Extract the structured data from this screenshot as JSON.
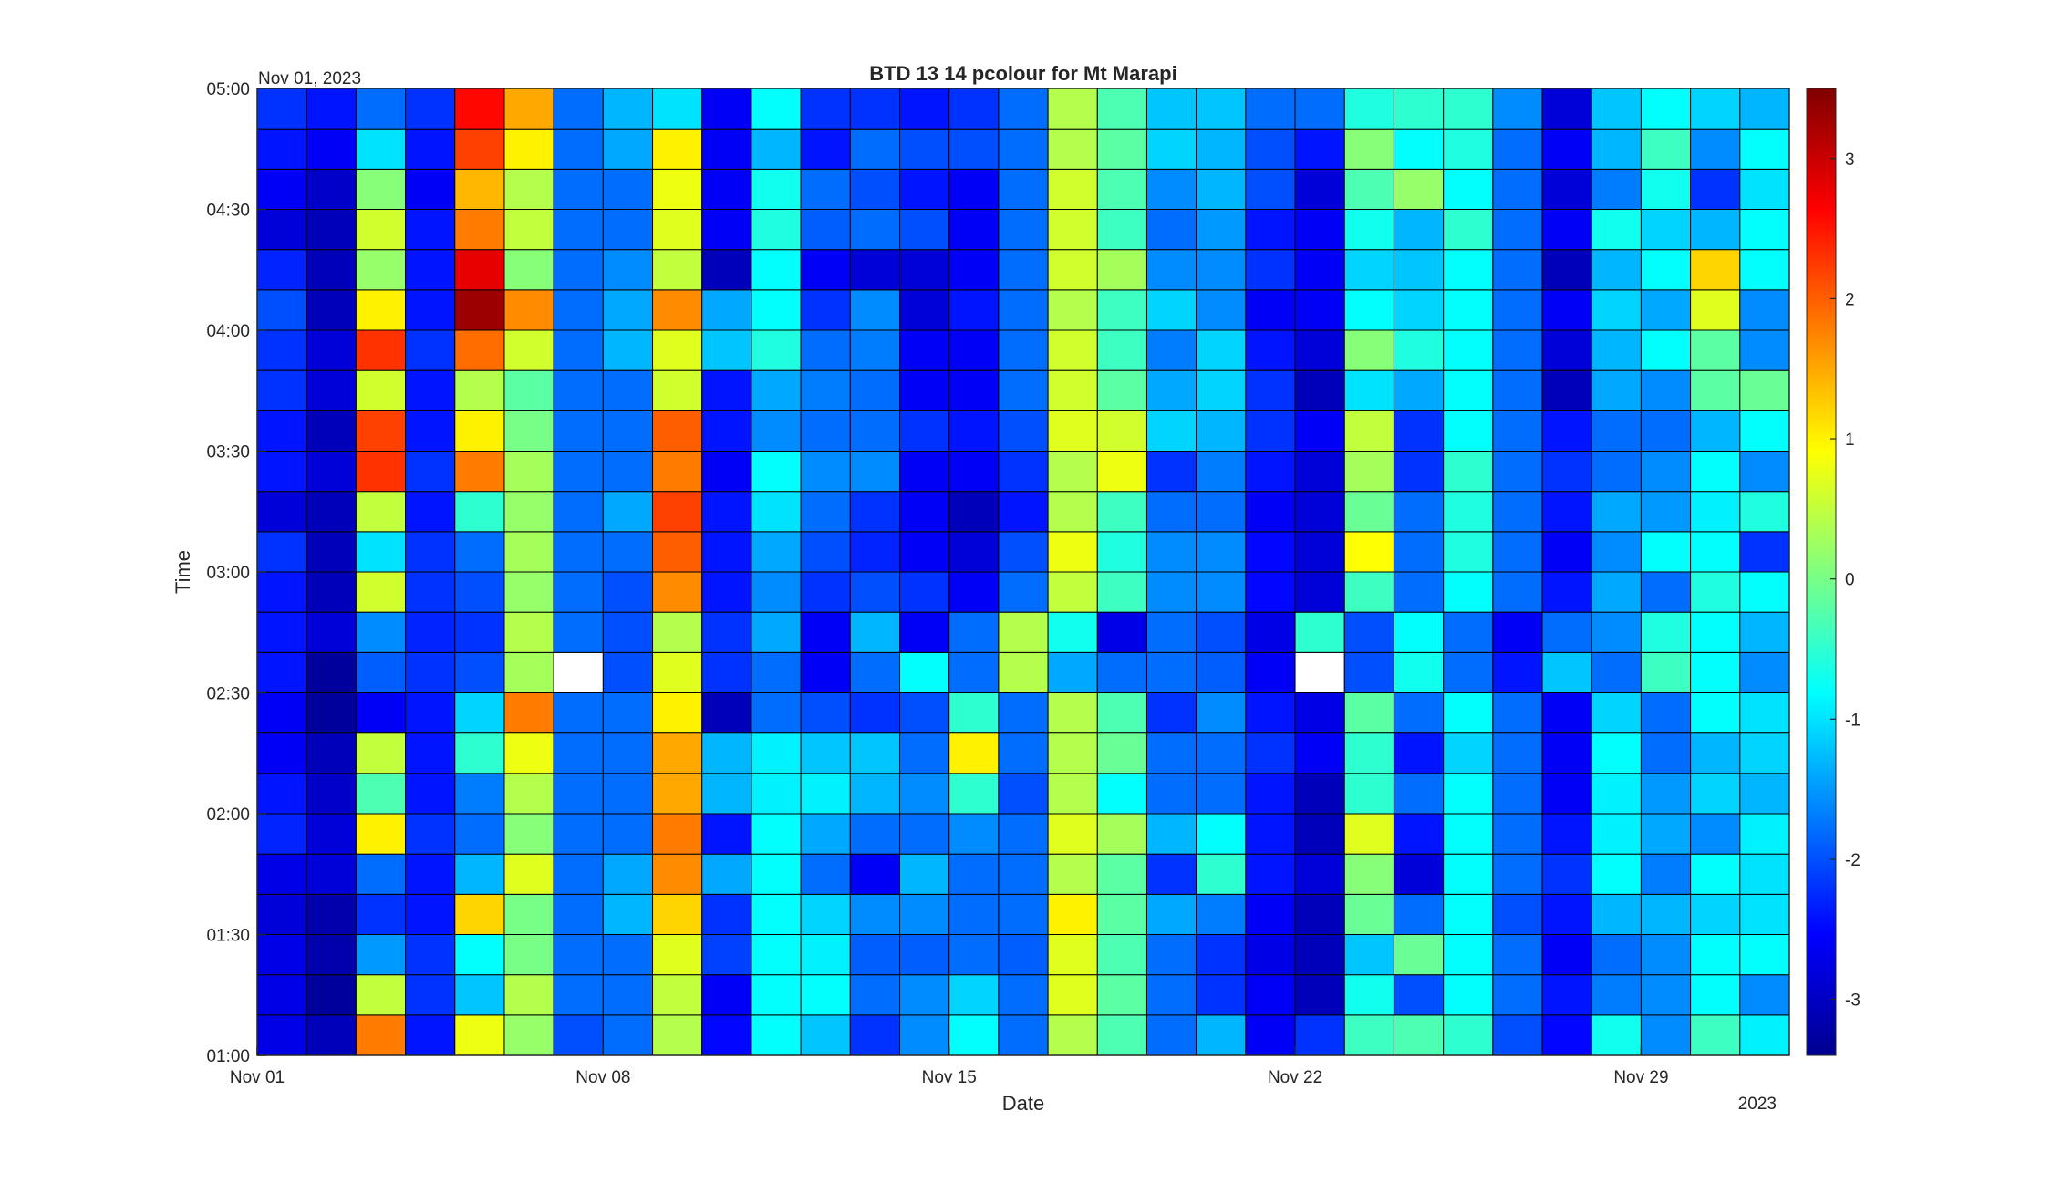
{
  "chart_data": {
    "type": "heatmap",
    "title": "BTD 13 14 pcolour for Mt Marapi",
    "xlabel": "Date",
    "ylabel": "Time",
    "x_start_label": "Nov 01, 2023",
    "x_year_label": "2023",
    "x_tick_labels": [
      "Nov 01",
      "Nov 08",
      "Nov 15",
      "Nov 22",
      "Nov 29"
    ],
    "y_tick_labels": [
      "01:00",
      "01:30",
      "02:00",
      "02:30",
      "03:00",
      "03:30",
      "04:00",
      "04:30",
      "05:00"
    ],
    "colorbar_ticks": [
      -3,
      -2,
      -1,
      0,
      1,
      2,
      3
    ],
    "colormap": "jet",
    "clim": [
      -3.4,
      3.5
    ],
    "x": [
      "Nov 01",
      "Nov 02",
      "Nov 03",
      "Nov 04",
      "Nov 05",
      "Nov 06",
      "Nov 07",
      "Nov 08",
      "Nov 09",
      "Nov 10",
      "Nov 11",
      "Nov 12",
      "Nov 13",
      "Nov 14",
      "Nov 15",
      "Nov 16",
      "Nov 17",
      "Nov 18",
      "Nov 19",
      "Nov 20",
      "Nov 21",
      "Nov 22",
      "Nov 23",
      "Nov 24",
      "Nov 25",
      "Nov 26",
      "Nov 27",
      "Nov 28",
      "Nov 29",
      "Nov 30",
      "Dec 01"
    ],
    "y": [
      "01:00",
      "01:10",
      "01:20",
      "01:30",
      "01:40",
      "01:50",
      "02:00",
      "02:10",
      "02:20",
      "02:30",
      "02:40",
      "02:50",
      "03:00",
      "03:10",
      "03:20",
      "03:30",
      "03:40",
      "03:50",
      "04:00",
      "04:10",
      "04:20",
      "04:30",
      "04:40",
      "04:50"
    ],
    "values": [
      [
        -2.7,
        -3.0,
        1.8,
        -2.4,
        0.8,
        0.2,
        -2.0,
        -1.8,
        0.4,
        -2.5,
        -0.8,
        -1.2,
        -2.2,
        -1.6,
        -0.8,
        -1.8,
        0.4,
        -0.3,
        -1.8,
        -1.3,
        -2.6,
        -2.2,
        -0.4,
        -0.3,
        -0.5,
        -2.0,
        -2.5,
        -0.7,
        -1.6,
        -0.4,
        -0.9
      ],
      [
        -2.7,
        -3.2,
        0.5,
        -2.2,
        -1.2,
        0.4,
        -1.8,
        -1.8,
        0.5,
        -2.6,
        -0.8,
        -0.8,
        -1.8,
        -1.6,
        -1.1,
        -1.8,
        0.7,
        -0.2,
        -1.8,
        -2.2,
        -2.6,
        -3.0,
        -0.7,
        -2.0,
        -0.8,
        -1.8,
        -2.4,
        -1.7,
        -1.6,
        -0.8,
        -1.6
      ],
      [
        -2.7,
        -3.1,
        -1.5,
        -2.2,
        -0.8,
        0.0,
        -1.8,
        -1.8,
        0.7,
        -2.1,
        -0.8,
        -0.9,
        -1.9,
        -1.9,
        -1.8,
        -1.9,
        0.7,
        -0.3,
        -1.8,
        -2.2,
        -2.7,
        -3.0,
        -1.2,
        -0.1,
        -0.8,
        -1.8,
        -2.6,
        -1.8,
        -1.6,
        -0.8,
        -0.8
      ],
      [
        -2.8,
        -3.1,
        -2.2,
        -2.4,
        1.2,
        0.0,
        -1.8,
        -1.3,
        1.2,
        -2.2,
        -0.8,
        -1.1,
        -1.6,
        -1.6,
        -1.8,
        -1.8,
        1.0,
        -0.2,
        -1.4,
        -1.7,
        -2.6,
        -3.0,
        -0.1,
        -1.8,
        -0.8,
        -2.0,
        -2.4,
        -1.3,
        -1.3,
        -1.1,
        -1.0
      ],
      [
        -2.7,
        -2.8,
        -1.8,
        -2.4,
        -1.3,
        0.7,
        -1.8,
        -1.4,
        1.7,
        -1.4,
        -0.8,
        -1.8,
        -2.6,
        -1.3,
        -1.8,
        -1.8,
        0.4,
        -0.2,
        -2.2,
        -0.5,
        -2.4,
        -2.8,
        0.1,
        -2.8,
        -0.8,
        -1.8,
        -2.2,
        -0.8,
        -1.7,
        -0.8,
        -1.0
      ],
      [
        -2.3,
        -2.8,
        1.0,
        -2.2,
        -1.8,
        0.1,
        -1.8,
        -1.8,
        1.8,
        -2.4,
        -0.8,
        -1.4,
        -1.8,
        -1.8,
        -1.6,
        -1.8,
        0.7,
        0.3,
        -1.3,
        -0.8,
        -2.4,
        -3.0,
        0.7,
        -2.4,
        -0.8,
        -1.8,
        -2.4,
        -0.9,
        -1.4,
        -1.6,
        -0.9
      ],
      [
        -2.4,
        -2.9,
        -0.3,
        -2.4,
        -1.7,
        0.4,
        -1.8,
        -1.8,
        1.5,
        -1.3,
        -0.9,
        -0.9,
        -1.3,
        -1.6,
        -0.5,
        -2.0,
        0.4,
        -0.8,
        -1.8,
        -1.8,
        -2.4,
        -3.0,
        -0.5,
        -1.8,
        -0.8,
        -1.8,
        -2.6,
        -0.9,
        -1.5,
        -1.1,
        -1.3
      ],
      [
        -2.6,
        -3.0,
        0.5,
        -2.4,
        -0.5,
        0.8,
        -1.8,
        -1.8,
        1.5,
        -1.3,
        -0.9,
        -1.2,
        -1.2,
        -1.8,
        1.0,
        -1.8,
        0.4,
        -0.1,
        -1.8,
        -1.8,
        -2.2,
        -2.6,
        -0.5,
        -2.4,
        -1.1,
        -1.8,
        -2.6,
        -0.8,
        -1.8,
        -1.3,
        -1.1
      ],
      [
        -2.6,
        -3.2,
        -2.6,
        -2.4,
        -1.1,
        1.8,
        -1.8,
        -1.8,
        1.0,
        -3.0,
        -1.8,
        -2.0,
        -2.2,
        -2.0,
        -0.5,
        -1.8,
        0.4,
        -0.3,
        -2.2,
        -1.6,
        -2.4,
        -2.7,
        -0.2,
        -1.8,
        -0.8,
        -1.8,
        -2.6,
        -1.1,
        -1.8,
        -0.8,
        -1.0
      ],
      [
        -2.4,
        -3.2,
        -1.9,
        -2.2,
        -2.0,
        0.3,
        null,
        -2.0,
        0.7,
        -2.2,
        -1.8,
        -2.6,
        -1.8,
        -0.8,
        -1.8,
        0.4,
        -1.4,
        -1.8,
        -1.8,
        -1.9,
        -2.6,
        null,
        -2.0,
        -0.7,
        -1.8,
        -2.4,
        -1.2,
        -1.8,
        -0.4,
        -0.8,
        -1.6
      ],
      [
        -2.4,
        -2.8,
        -1.6,
        -2.3,
        -2.2,
        0.4,
        -1.8,
        -2.0,
        0.4,
        -2.2,
        -1.4,
        -2.6,
        -1.3,
        -2.6,
        -1.8,
        0.4,
        -0.7,
        -2.7,
        -1.8,
        -2.0,
        -2.7,
        -0.5,
        -2.0,
        -0.8,
        -1.8,
        -2.6,
        -1.8,
        -1.6,
        -0.6,
        -0.8,
        -1.3
      ],
      [
        -2.4,
        -3.0,
        0.6,
        -2.2,
        -2.0,
        0.2,
        -1.8,
        -2.0,
        1.7,
        -2.4,
        -1.6,
        -2.2,
        -2.0,
        -2.2,
        -2.6,
        -1.8,
        0.5,
        -0.4,
        -1.6,
        -1.6,
        -2.5,
        -2.8,
        -0.4,
        -1.8,
        -0.8,
        -1.8,
        -2.4,
        -1.4,
        -1.8,
        -0.6,
        -0.8
      ],
      [
        -2.2,
        -3.0,
        -1.0,
        -2.2,
        -1.8,
        0.3,
        -1.8,
        -1.8,
        2.0,
        -2.4,
        -1.4,
        -2.0,
        -2.3,
        -2.6,
        -2.8,
        -2.0,
        0.8,
        -0.6,
        -1.6,
        -1.6,
        -2.5,
        -2.8,
        0.9,
        -1.8,
        -0.6,
        -1.8,
        -2.6,
        -1.6,
        -0.8,
        -0.8,
        -2.2
      ],
      [
        -2.8,
        -3.0,
        0.5,
        -2.4,
        -0.5,
        0.2,
        -1.8,
        -1.4,
        2.2,
        -2.4,
        -1.0,
        -1.8,
        -2.2,
        -2.6,
        -3.0,
        -2.4,
        0.4,
        -0.4,
        -1.8,
        -1.8,
        -2.6,
        -2.8,
        -0.1,
        -1.8,
        -0.6,
        -1.8,
        -2.4,
        -1.4,
        -1.5,
        -0.9,
        -0.6
      ],
      [
        -2.4,
        -2.8,
        2.3,
        -2.2,
        1.8,
        0.3,
        -1.8,
        -1.8,
        1.8,
        -2.6,
        -0.8,
        -1.6,
        -1.6,
        -2.6,
        -2.6,
        -2.2,
        0.4,
        0.8,
        -2.2,
        -1.7,
        -2.4,
        -2.8,
        0.3,
        -2.2,
        -0.5,
        -1.8,
        -2.2,
        -1.8,
        -1.6,
        -0.8,
        -1.6
      ],
      [
        -2.4,
        -3.0,
        2.2,
        -2.4,
        1.0,
        0.0,
        -1.8,
        -1.8,
        2.0,
        -2.4,
        -1.6,
        -1.8,
        -1.8,
        -2.2,
        -2.4,
        -2.0,
        0.7,
        0.6,
        -1.1,
        -1.3,
        -2.2,
        -2.6,
        0.5,
        -2.2,
        -0.8,
        -1.8,
        -2.4,
        -1.8,
        -1.8,
        -1.3,
        -0.8
      ],
      [
        -2.2,
        -2.8,
        0.6,
        -2.4,
        0.4,
        -0.2,
        -1.8,
        -1.8,
        0.6,
        -2.4,
        -1.4,
        -1.7,
        -1.8,
        -2.6,
        -2.6,
        -1.8,
        0.6,
        -0.2,
        -1.4,
        -1.1,
        -2.2,
        -3.0,
        -1.0,
        -1.4,
        -0.8,
        -1.8,
        -3.0,
        -1.4,
        -1.6,
        -0.2,
        -0.1
      ],
      [
        -2.2,
        -2.8,
        2.3,
        -2.2,
        1.9,
        0.6,
        -1.8,
        -1.3,
        0.7,
        -1.2,
        -0.6,
        -1.8,
        -1.7,
        -2.6,
        -2.6,
        -1.8,
        0.6,
        -0.4,
        -1.7,
        -1.1,
        -2.4,
        -2.8,
        0.1,
        -0.6,
        -0.8,
        -1.8,
        -2.8,
        -1.3,
        -0.8,
        -0.2,
        -1.6
      ],
      [
        -2.0,
        -3.0,
        1.0,
        -2.4,
        3.3,
        1.7,
        -1.8,
        -1.4,
        1.7,
        -1.4,
        -0.8,
        -2.2,
        -1.6,
        -2.8,
        -2.4,
        -1.8,
        0.4,
        -0.4,
        -1.1,
        -1.6,
        -2.6,
        -2.6,
        -0.8,
        -1.1,
        -0.8,
        -1.8,
        -2.6,
        -1.1,
        -1.4,
        0.7,
        -1.6
      ],
      [
        -2.3,
        -3.0,
        0.2,
        -2.4,
        2.8,
        0.1,
        -1.8,
        -1.6,
        0.5,
        -3.0,
        -0.8,
        -2.6,
        -2.8,
        -2.8,
        -2.6,
        -1.8,
        0.6,
        0.3,
        -1.6,
        -1.6,
        -2.2,
        -2.6,
        -1.1,
        -1.2,
        -0.8,
        -1.8,
        -3.0,
        -1.3,
        -0.8,
        1.2,
        -0.8
      ],
      [
        -2.8,
        -3.0,
        0.6,
        -2.4,
        1.8,
        0.5,
        -1.8,
        -1.8,
        0.7,
        -2.6,
        -0.6,
        -1.9,
        -1.8,
        -2.0,
        -2.6,
        -1.8,
        0.6,
        -0.4,
        -1.8,
        -1.5,
        -2.4,
        -2.6,
        -0.7,
        -1.3,
        -0.5,
        -1.8,
        -2.6,
        -0.7,
        -1.1,
        -1.3,
        -0.8
      ],
      [
        -2.6,
        -2.9,
        0.1,
        -2.6,
        1.4,
        0.4,
        -1.8,
        -1.8,
        0.8,
        -2.6,
        -0.7,
        -1.8,
        -2.0,
        -2.4,
        -2.6,
        -1.8,
        0.6,
        -0.3,
        -1.6,
        -1.3,
        -2.0,
        -2.8,
        -0.3,
        0.2,
        -0.8,
        -1.8,
        -2.8,
        -1.7,
        -0.7,
        -2.2,
        -1.0
      ],
      [
        -2.4,
        -2.6,
        -1.0,
        -2.4,
        2.2,
        1.0,
        -1.8,
        -1.4,
        1.0,
        -2.6,
        -1.3,
        -2.4,
        -1.8,
        -2.0,
        -2.0,
        -1.8,
        0.4,
        -0.2,
        -1.1,
        -1.3,
        -2.0,
        -2.4,
        0.1,
        -0.8,
        -0.6,
        -1.8,
        -2.6,
        -1.3,
        -0.4,
        -1.6,
        -0.8
      ],
      [
        -2.2,
        -2.4,
        -1.8,
        -2.2,
        2.6,
        1.5,
        -1.8,
        -1.3,
        -1.0,
        -2.6,
        -0.8,
        -2.2,
        -2.2,
        -2.4,
        -2.2,
        -1.8,
        0.4,
        -0.3,
        -1.2,
        -1.2,
        -1.8,
        -1.8,
        -0.6,
        -0.5,
        -0.5,
        -1.6,
        -2.8,
        -1.2,
        -0.8,
        -1.1,
        -1.3
      ]
    ]
  }
}
